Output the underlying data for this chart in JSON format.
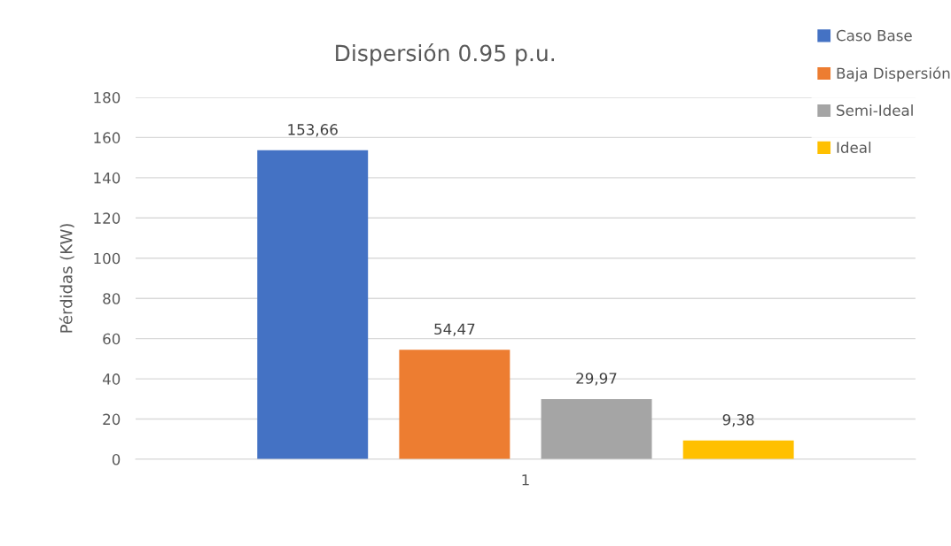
{
  "chart_data": {
    "type": "bar",
    "title": "Dispersión 0.95 p.u.",
    "ylabel": "Pérdidas (KW)",
    "categories": [
      "1"
    ],
    "series": [
      {
        "name": "Caso Base",
        "color": "#4472c4",
        "values": [
          153.66
        ],
        "value_labels": [
          "153,66"
        ]
      },
      {
        "name": "Baja Dispersión",
        "color": "#ed7d31",
        "values": [
          54.47
        ],
        "value_labels": [
          "54,47"
        ]
      },
      {
        "name": "Semi-Ideal",
        "color": "#a5a5a5",
        "values": [
          29.97
        ],
        "value_labels": [
          "29,97"
        ]
      },
      {
        "name": "Ideal",
        "color": "#ffc000",
        "values": [
          9.38
        ],
        "value_labels": [
          "9,38"
        ]
      }
    ],
    "ylim": [
      0,
      180
    ],
    "yticks": [
      0,
      20,
      40,
      60,
      80,
      100,
      120,
      140,
      160,
      180
    ],
    "grid": "y",
    "legend": "top right"
  }
}
